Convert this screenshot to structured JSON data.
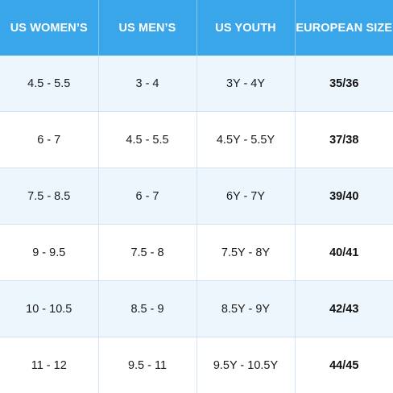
{
  "headers": [
    "US WOMEN’S",
    "US MEN’S",
    "US YOUTH",
    "EUROPEAN SIZE"
  ],
  "rows": [
    [
      "4.5 - 5.5",
      "3 - 4",
      "3Y - 4Y",
      "35/36"
    ],
    [
      "6 - 7",
      "4.5 - 5.5",
      "4.5Y - 5.5Y",
      "37/38"
    ],
    [
      "7.5 - 8.5",
      "6 - 7",
      "6Y - 7Y",
      "39/40"
    ],
    [
      "9 - 9.5",
      "7.5 - 8",
      "7.5Y - 8Y",
      "40/41"
    ],
    [
      "10 - 10.5",
      "8.5 - 9",
      "8.5Y - 9Y",
      "42/43"
    ],
    [
      "11 - 12",
      "9.5 - 11",
      "9.5Y - 10.5Y",
      "44/45"
    ]
  ],
  "colors": {
    "header_background": "#3aa6ea",
    "header_text": "#ffffff",
    "row_alt_background": "#eef6fd",
    "row_background": "#ffffff"
  }
}
